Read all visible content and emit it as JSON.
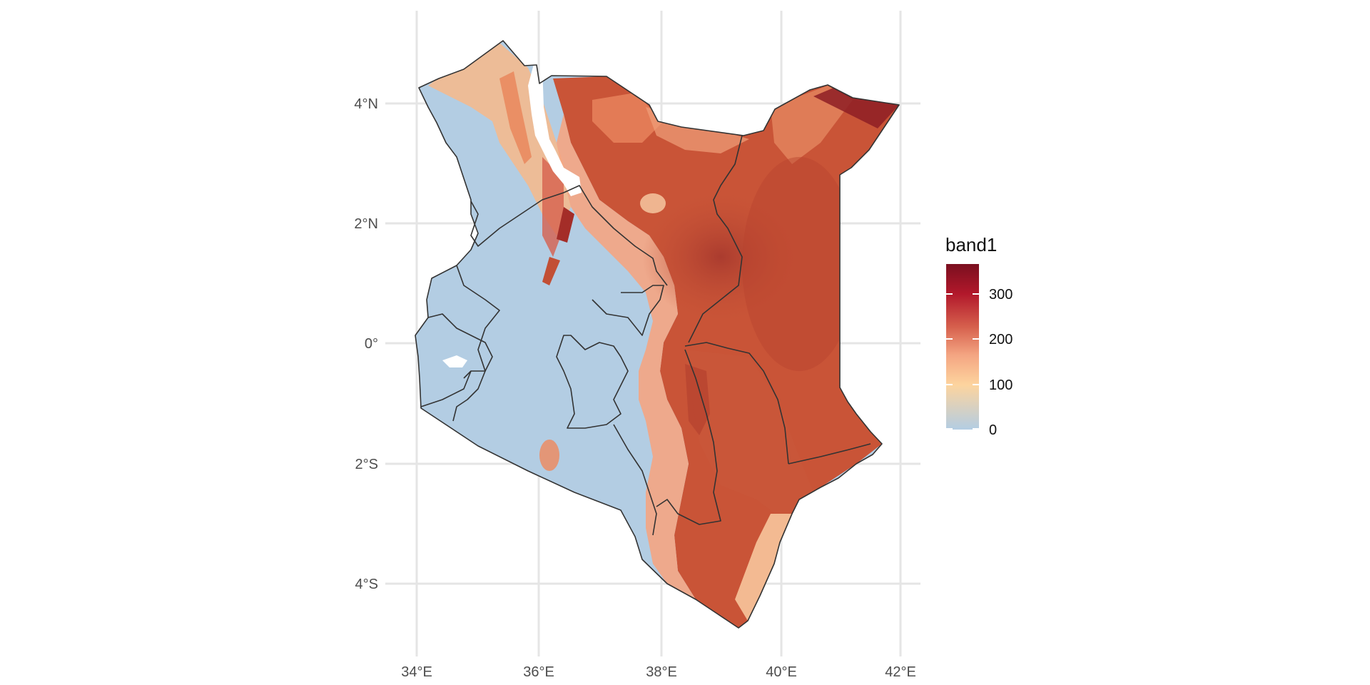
{
  "map": {
    "x_ticks": [
      "34°E",
      "36°E",
      "38°E",
      "40°E",
      "42°E"
    ],
    "y_ticks": [
      "4°N",
      "2°N",
      "0°",
      "2°S",
      "4°S"
    ],
    "x_range_deg": [
      33.6,
      42.3
    ],
    "y_range_deg": [
      -5.2,
      5.2
    ]
  },
  "legend": {
    "title": "band1",
    "labels": [
      "300",
      "200",
      "100",
      "0"
    ],
    "scale_min": 0,
    "scale_max": 370,
    "colors": [
      "#b3cde3",
      "#fdd49e",
      "#ef8a62",
      "#d6604d",
      "#67001f"
    ]
  },
  "chart_data": {
    "type": "heatmap",
    "fill_variable": "band1",
    "color_scale": {
      "min": 0,
      "max": 370,
      "breaks": [
        0,
        100,
        200,
        300
      ]
    },
    "x_ticks": [
      "34°E",
      "36°E",
      "38°E",
      "40°E",
      "42°E"
    ],
    "y_ticks": [
      "4°N",
      "2°N",
      "0°",
      "2°S",
      "4°S"
    ],
    "grid": true
  }
}
